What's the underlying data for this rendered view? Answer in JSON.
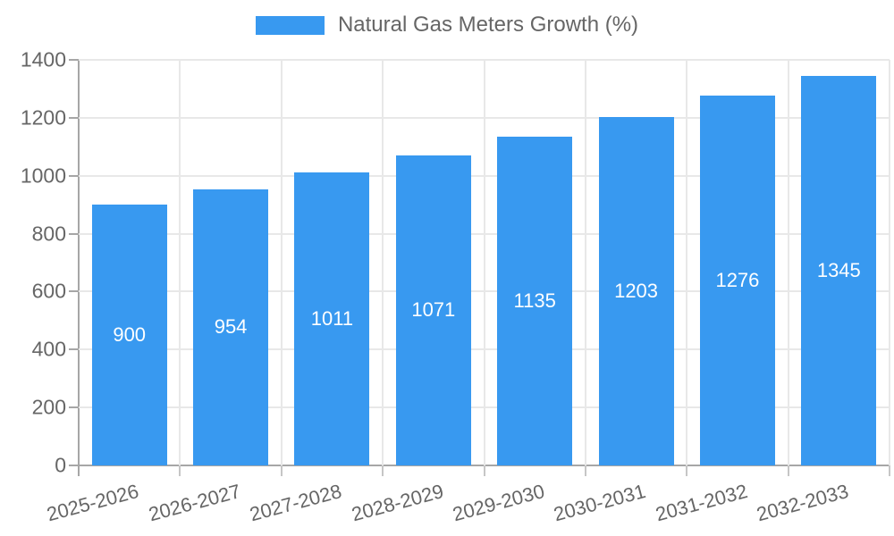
{
  "legend": {
    "series_label": "Natural Gas Meters Growth (%)"
  },
  "chart_data": {
    "type": "bar",
    "title": "Natural Gas Meters Growth (%)",
    "categories": [
      "2025-2026",
      "2026-2027",
      "2027-2028",
      "2028-2029",
      "2029-2030",
      "2030-2031",
      "2031-2032",
      "2032-2033"
    ],
    "series": [
      {
        "name": "Natural Gas Meters Growth (%)",
        "values": [
          900,
          954,
          1011,
          1071,
          1135,
          1203,
          1276,
          1345
        ]
      }
    ],
    "value_labels_shown": true,
    "xlabel": "",
    "ylabel": "",
    "ylim": [
      0,
      1400
    ],
    "ytick_step": 200,
    "yticks": [
      "0",
      "200",
      "400",
      "600",
      "800",
      "1000",
      "1200",
      "1400"
    ],
    "grid": true,
    "legend_position": "top",
    "colors": {
      "bar": "#3899F0",
      "value_label": "#FFFFFF",
      "axis_text": "#666666",
      "gridline": "#E8E8E8",
      "axis_line": "#A6A6A6",
      "x_tick_mark": "#C6C6C6"
    }
  }
}
